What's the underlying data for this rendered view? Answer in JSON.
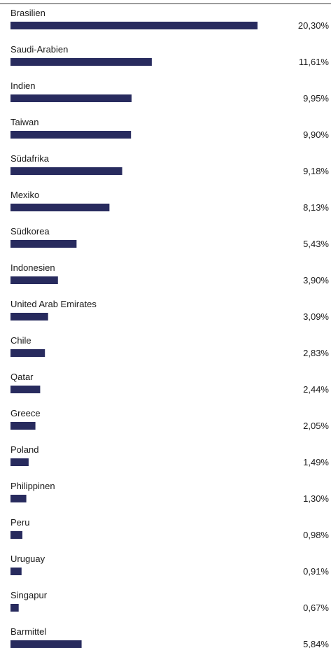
{
  "chart_data": {
    "type": "bar",
    "orientation": "horizontal",
    "categories": [
      "Brasilien",
      "Saudi-Arabien",
      "Indien",
      "Taiwan",
      "Südafrika",
      "Mexiko",
      "Südkorea",
      "Indonesien",
      "United Arab Emirates",
      "Chile",
      "Qatar",
      "Greece",
      "Poland",
      "Philippinen",
      "Peru",
      "Uruguay",
      "Singapur",
      "Barmittel"
    ],
    "values": [
      20.3,
      11.61,
      9.95,
      9.9,
      9.18,
      8.13,
      5.43,
      3.9,
      3.09,
      2.83,
      2.44,
      2.05,
      1.49,
      1.3,
      0.98,
      0.91,
      0.67,
      5.84
    ],
    "value_labels": [
      "20,30%",
      "11,61%",
      "9,95%",
      "9,90%",
      "9,18%",
      "8,13%",
      "5,43%",
      "3,90%",
      "3,09%",
      "2,83%",
      "2,44%",
      "2,05%",
      "1,49%",
      "1,30%",
      "0,98%",
      "0,91%",
      "0,67%",
      "5,84%"
    ],
    "bar_color": "#282b5e",
    "grid": false,
    "legend": "none"
  }
}
